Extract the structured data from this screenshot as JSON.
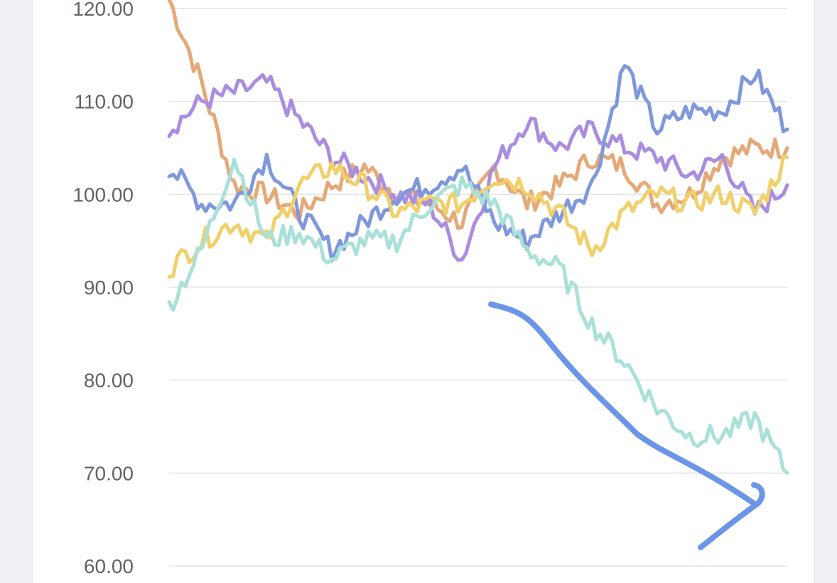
{
  "chart_data": {
    "type": "line",
    "title": "",
    "xlabel": "",
    "ylabel": "",
    "ylim": [
      60,
      121
    ],
    "yticks": [
      {
        "value": 60,
        "label": "60.00"
      },
      {
        "value": 70,
        "label": "70.00"
      },
      {
        "value": 80,
        "label": "80.00"
      },
      {
        "value": 90,
        "label": "90.00"
      },
      {
        "value": 100,
        "label": "100.00"
      },
      {
        "value": 110,
        "label": "110.00"
      },
      {
        "value": 120,
        "label": "120.00"
      }
    ],
    "x_count": 20,
    "grid": true,
    "legend": "none",
    "series": [
      {
        "color": "#e5a877",
        "values": [
          121,
          112,
          101,
          100,
          98,
          101,
          103,
          100,
          99,
          97,
          103,
          99,
          101,
          104,
          103,
          99,
          100,
          104,
          105,
          105
        ]
      },
      {
        "color": "#a98de0",
        "values": [
          107,
          110,
          111,
          112,
          108,
          104,
          102,
          100,
          99,
          93,
          103,
          108,
          105,
          107,
          105,
          104,
          102,
          104,
          98,
          101
        ]
      },
      {
        "color": "#7f98db",
        "values": [
          103,
          99,
          99,
          104,
          98,
          94,
          97,
          100,
          101,
          103,
          97,
          95,
          98,
          101,
          114,
          107,
          109,
          109,
          113,
          107
        ]
      },
      {
        "color": "#f1d06a",
        "values": [
          92,
          95,
          97,
          95,
          101,
          103,
          101,
          98,
          99,
          99,
          102,
          101,
          98,
          94,
          98,
          100,
          99,
          100,
          98,
          104
        ]
      },
      {
        "color": "#a9e1d8",
        "values": [
          88,
          94,
          104,
          95,
          96,
          93,
          95,
          95,
          99,
          101,
          99,
          94,
          92,
          86,
          82,
          77,
          74,
          74,
          76,
          70
        ]
      }
    ]
  },
  "annotation": {
    "color": "#6b96e8"
  }
}
